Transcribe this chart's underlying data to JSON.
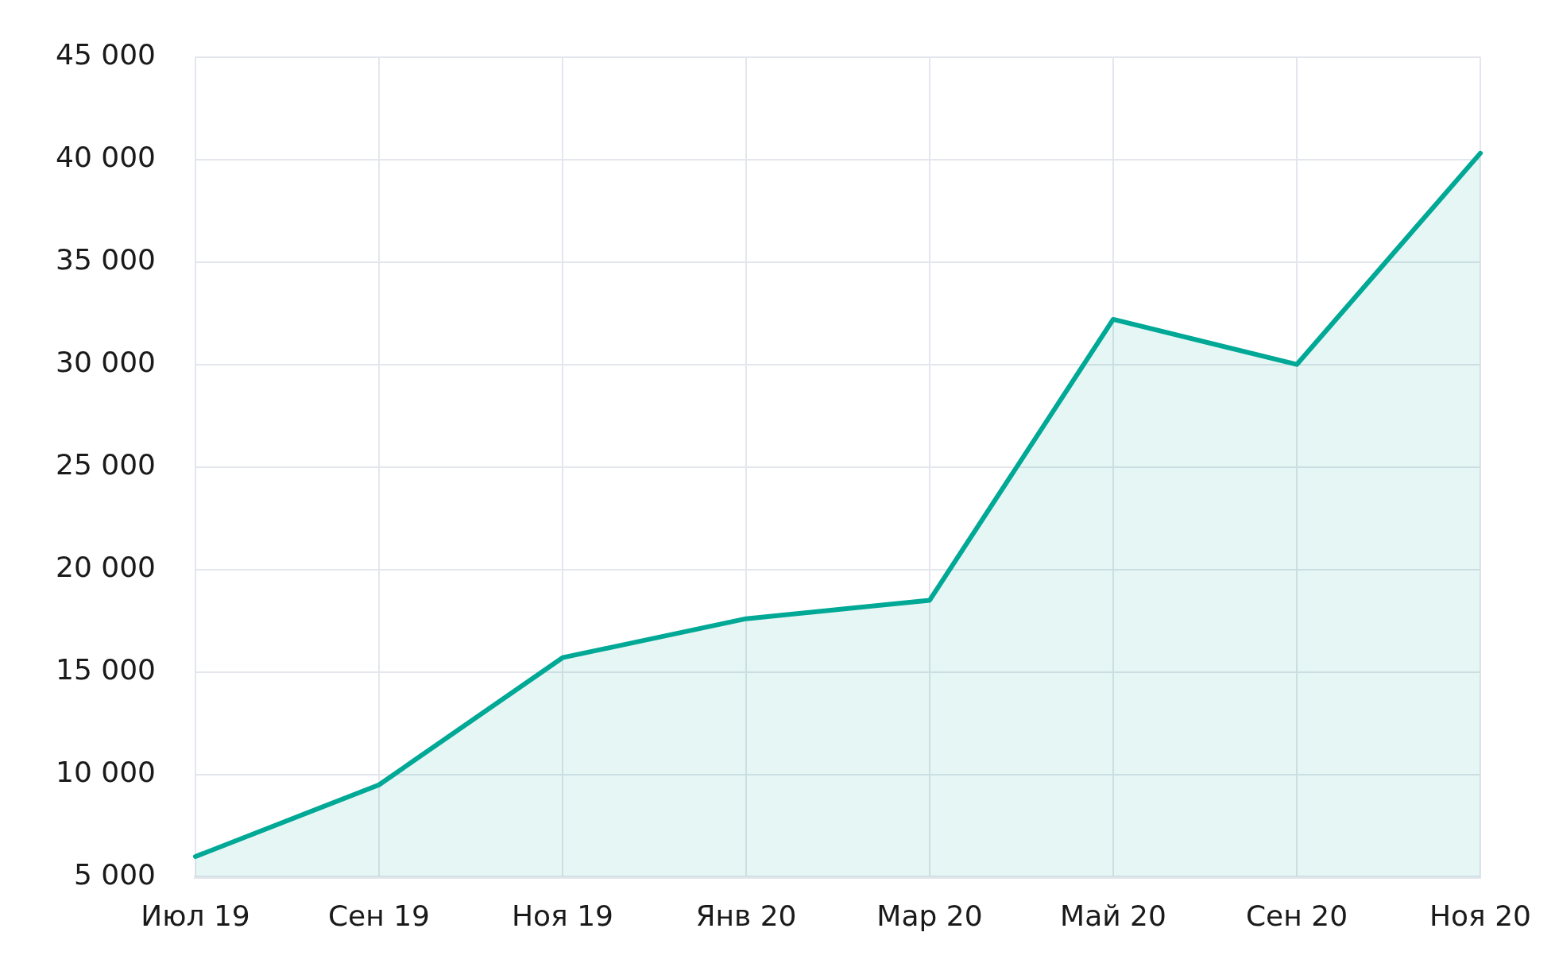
{
  "chart_data": {
    "type": "area",
    "categories": [
      "Июл 19",
      "Сен 19",
      "Ноя 19",
      "Янв 20",
      "Мар 20",
      "Май 20",
      "Сен 20",
      "Ноя 20"
    ],
    "series": [
      {
        "color": "#00a896",
        "values": [
          6000,
          9500,
          15700,
          17600,
          18500,
          32200,
          30000,
          40300
        ]
      }
    ],
    "ylim": [
      5000,
      45000
    ],
    "yticks": [
      {
        "value": 5000,
        "label": "5 000"
      },
      {
        "value": 10000,
        "label": "10 000"
      },
      {
        "value": 15000,
        "label": "15 000"
      },
      {
        "value": 20000,
        "label": "20 000"
      },
      {
        "value": 25000,
        "label": "25 000"
      },
      {
        "value": 30000,
        "label": "30 000"
      },
      {
        "value": 35000,
        "label": "35 000"
      },
      {
        "value": 40000,
        "label": "40 000"
      },
      {
        "value": 45000,
        "label": "45 000"
      }
    ],
    "grid": true,
    "legend": false,
    "marker": "none",
    "line_style": "solid"
  }
}
